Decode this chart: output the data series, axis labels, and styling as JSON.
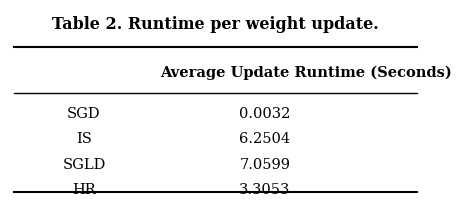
{
  "title": "Table 2. Runtime per weight update.",
  "col_header": "Average Update Runtime (Seconds)",
  "rows": [
    [
      "SGD",
      "0.0032"
    ],
    [
      "IS",
      "6.2504"
    ],
    [
      "SGLD",
      "7.0599"
    ],
    [
      "HR",
      "3.3053"
    ]
  ],
  "background_color": "#ffffff",
  "text_color": "#000000",
  "title_fontsize": 11.5,
  "header_fontsize": 10.5,
  "row_fontsize": 10.5
}
